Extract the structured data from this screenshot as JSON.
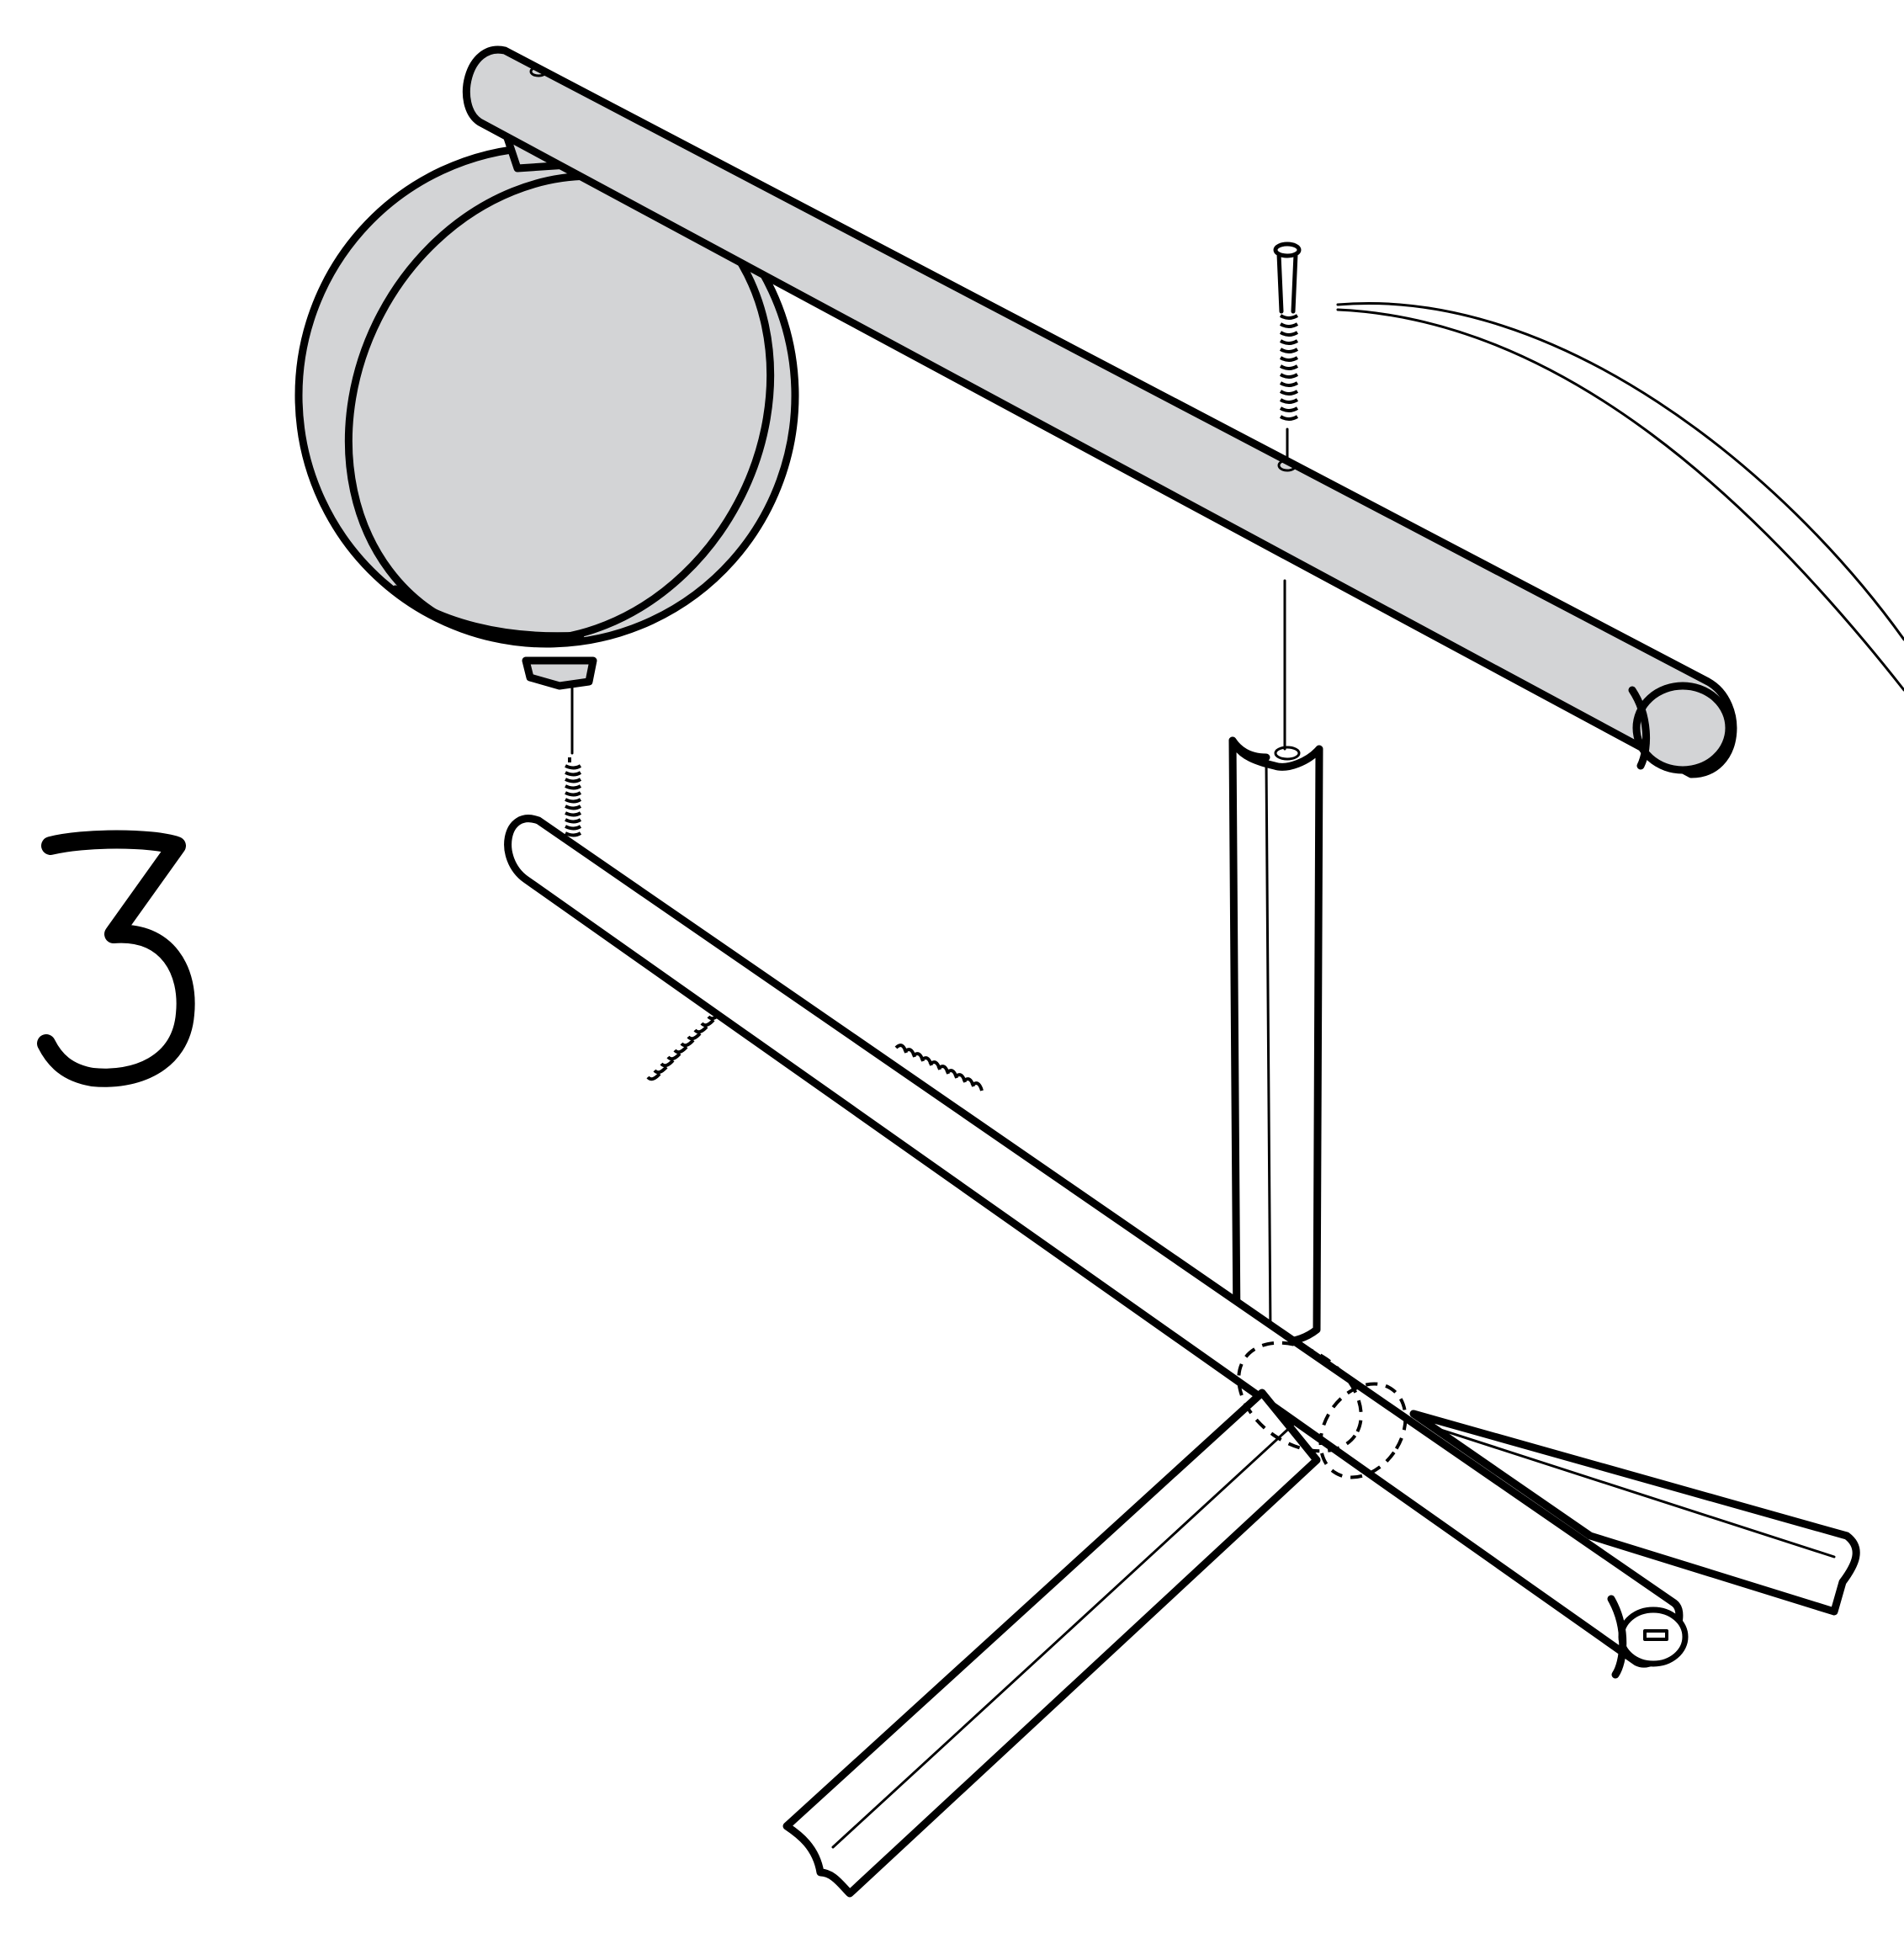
{
  "instruction": {
    "step_number": "3"
  },
  "illustration": {
    "parts": [
      {
        "name": "lamp-head-arm",
        "icon": "grey-arm-with-round-shade"
      },
      {
        "name": "lamp-shade",
        "icon": "round-disc-shade"
      },
      {
        "name": "vertical-post",
        "icon": "post-with-groove"
      },
      {
        "name": "lower-arm",
        "icon": "horizontal-tube"
      },
      {
        "name": "base-legs",
        "icon": "tripod-feet"
      },
      {
        "name": "screws",
        "icon": "screw-icon"
      },
      {
        "name": "springs",
        "icon": "spring-icon"
      },
      {
        "name": "cable",
        "icon": "cable-curve"
      }
    ],
    "colors": {
      "part_fill": "#d3d4d6",
      "outline": "#000000",
      "background": "#ffffff"
    }
  }
}
